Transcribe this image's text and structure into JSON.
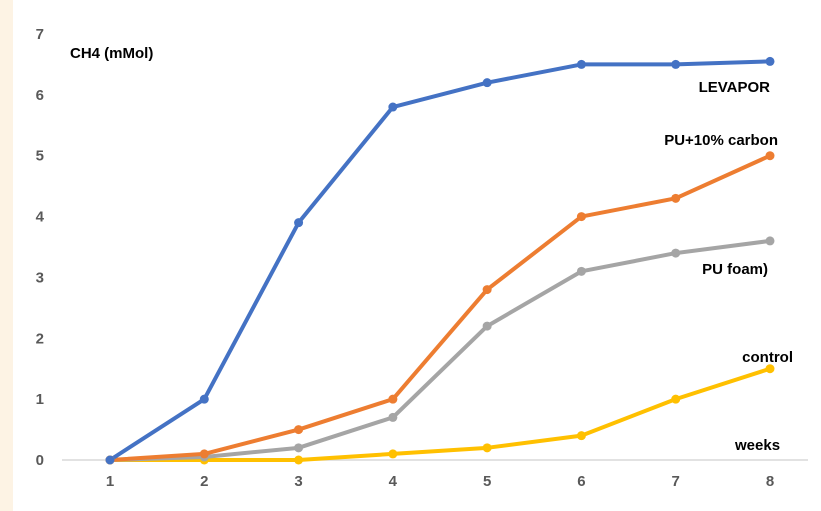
{
  "chart_data": {
    "type": "line",
    "title": "",
    "xlabel": "weeks",
    "ylabel": "CH4 (mMol)",
    "x": [
      1,
      2,
      3,
      4,
      5,
      6,
      7,
      8
    ],
    "x_ticks": [
      "1",
      "2",
      "3",
      "4",
      "5",
      "6",
      "7",
      "8"
    ],
    "ylim": [
      0,
      7
    ],
    "y_ticks": [
      "0",
      "1",
      "2",
      "3",
      "4",
      "5",
      "6",
      "7"
    ],
    "grid": false,
    "legend": "none (inline series labels)",
    "series": [
      {
        "name": "LEVAPOR",
        "color": "#4472C4",
        "values": [
          0,
          1.0,
          3.9,
          5.8,
          6.2,
          6.5,
          6.5,
          6.55
        ]
      },
      {
        "name": "PU+10% carbon",
        "color": "#ED7D31",
        "values": [
          0,
          0.1,
          0.5,
          1.0,
          2.8,
          4.0,
          4.3,
          5.0
        ]
      },
      {
        "name": "PU foam)",
        "color": "#A5A5A5",
        "values": [
          0,
          0.05,
          0.2,
          0.7,
          2.2,
          3.1,
          3.4,
          3.6
        ]
      },
      {
        "name": "control",
        "color": "#FFC000",
        "values": [
          0,
          0.0,
          0.0,
          0.1,
          0.2,
          0.4,
          1.0,
          1.5
        ]
      }
    ]
  }
}
